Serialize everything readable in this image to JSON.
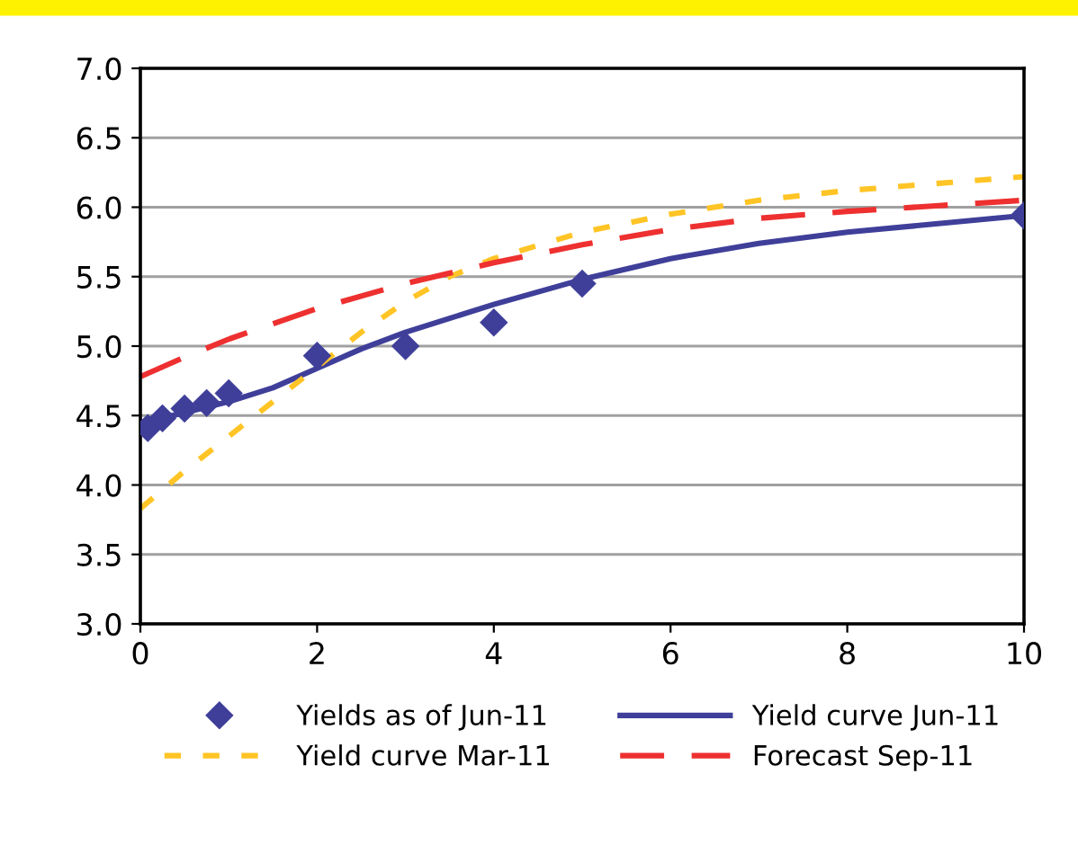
{
  "chart_data": {
    "type": "line",
    "xlim": [
      0,
      10
    ],
    "xticks": [
      0,
      2,
      4,
      6,
      8,
      10
    ],
    "ylim": [
      3.0,
      7.0
    ],
    "yticks": [
      {
        "value": 3.0,
        "label": "3.0"
      },
      {
        "value": 3.5,
        "label": "3.5"
      },
      {
        "value": 4.0,
        "label": "4.0"
      },
      {
        "value": 4.5,
        "label": "4.5"
      },
      {
        "value": 5.0,
        "label": "5.0"
      },
      {
        "value": 5.5,
        "label": "5.5"
      },
      {
        "value": 6.0,
        "label": "6.0"
      },
      {
        "value": 6.5,
        "label": "6.5"
      },
      {
        "value": 7.0,
        "label": "7.0"
      }
    ],
    "grid": "y",
    "legend": "bottom",
    "series": [
      {
        "name": "Yields as of Jun-11",
        "type": "scatter",
        "marker": "diamond",
        "color": "#3f3f9a",
        "x": [
          0.083,
          0.25,
          0.5,
          0.75,
          1,
          2,
          3,
          4,
          5,
          10
        ],
        "values": [
          4.41,
          4.48,
          4.55,
          4.59,
          4.66,
          4.93,
          5.0,
          5.17,
          5.45,
          5.94
        ]
      },
      {
        "name": "Yield curve Jun-11",
        "line_style": "solid",
        "color": "#3f3f9a",
        "x": [
          0,
          0.5,
          1,
          1.5,
          2,
          2.5,
          3,
          3.5,
          4,
          5,
          6,
          7,
          8,
          9,
          10
        ],
        "values": [
          4.45,
          4.52,
          4.6,
          4.7,
          4.84,
          4.98,
          5.1,
          5.2,
          5.3,
          5.48,
          5.63,
          5.74,
          5.82,
          5.88,
          5.94
        ]
      },
      {
        "name": "Yield curve Mar-11",
        "line_style": "dotted",
        "color": "#ffc425",
        "x": [
          0,
          0.5,
          1,
          1.5,
          2,
          2.5,
          3,
          3.5,
          4,
          5,
          6,
          7,
          8,
          9,
          10
        ],
        "values": [
          3.83,
          4.1,
          4.35,
          4.6,
          4.85,
          5.1,
          5.32,
          5.5,
          5.63,
          5.82,
          5.95,
          6.05,
          6.12,
          6.17,
          6.22
        ]
      },
      {
        "name": "Forecast Sep-11",
        "line_style": "dashed",
        "color": "#ee3030",
        "x": [
          0,
          0.5,
          1,
          2,
          3,
          4,
          5,
          6,
          7,
          8,
          9,
          10
        ],
        "values": [
          4.78,
          4.92,
          5.05,
          5.27,
          5.45,
          5.6,
          5.73,
          5.84,
          5.92,
          5.97,
          6.01,
          6.05
        ]
      }
    ]
  }
}
